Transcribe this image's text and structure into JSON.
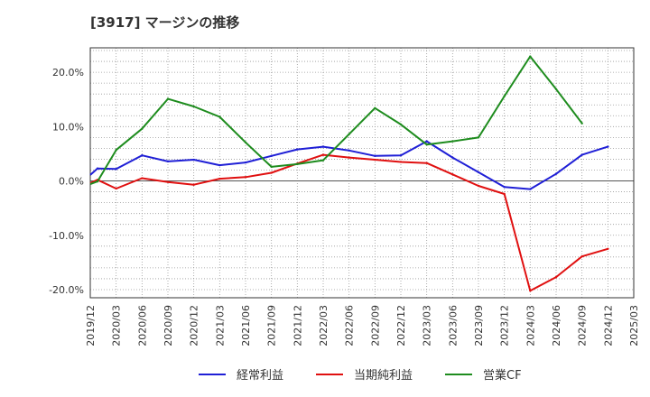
{
  "chart_data": {
    "type": "line",
    "title": "[3917]  マージンの推移",
    "xlabel": "",
    "ylabel": "",
    "ylim": [
      -21.5,
      24.5
    ],
    "yticks": [
      20,
      10,
      0,
      -10,
      -20
    ],
    "ytick_labels": [
      "20.0%",
      "10.0%",
      "0.0%",
      "-10.0%",
      "-20.0%"
    ],
    "x_categories": [
      "2019/12",
      "2020/03",
      "2020/06",
      "2020/09",
      "2020/12",
      "2021/03",
      "2021/06",
      "2021/09",
      "2021/12",
      "2022/03",
      "2022/06",
      "2022/09",
      "2022/12",
      "2023/03",
      "2023/06",
      "2023/09",
      "2023/12",
      "2024/03",
      "2024/06",
      "2024/09",
      "2024/12",
      "2025/03"
    ],
    "grid": true,
    "legend_position": "bottom",
    "series": [
      {
        "name": "経常利益",
        "color": "#1f1fd6",
        "x": [
          "2019/12",
          "2020/03",
          "2020/06",
          "2020/09",
          "2020/12",
          "2021/03",
          "2021/06",
          "2021/09",
          "2021/12",
          "2022/03",
          "2022/06",
          "2022/09",
          "2022/12",
          "2023/03",
          "2023/06",
          "2023/09",
          "2023/12",
          "2024/03",
          "2024/06",
          "2024/09",
          "2024/12"
        ],
        "values": [
          2.3,
          2.2,
          4.7,
          3.6,
          3.9,
          2.9,
          3.4,
          4.6,
          5.8,
          6.3,
          5.6,
          4.6,
          4.7,
          7.3,
          4.3,
          1.6,
          -1.1,
          -1.5,
          1.3,
          4.8,
          6.3
        ],
        "start_value": 1.1
      },
      {
        "name": "当期純利益",
        "color": "#e01010",
        "x": [
          "2019/12",
          "2020/03",
          "2020/06",
          "2020/09",
          "2020/12",
          "2021/03",
          "2021/06",
          "2021/09",
          "2021/12",
          "2022/03",
          "2022/06",
          "2022/09",
          "2022/12",
          "2023/03",
          "2023/06",
          "2023/09",
          "2023/12",
          "2024/03",
          "2024/06",
          "2024/09",
          "2024/12"
        ],
        "values": [
          0.2,
          -1.4,
          0.5,
          -0.2,
          -0.7,
          0.4,
          0.7,
          1.5,
          3.2,
          4.8,
          4.3,
          3.9,
          3.5,
          3.3,
          1.2,
          -0.9,
          -2.4,
          -20.2,
          -17.7,
          -13.9,
          -12.5
        ],
        "start_value": -0.4
      },
      {
        "name": "営業CF",
        "color": "#1e8c1e",
        "x": [
          "2019/12",
          "2020/03",
          "2020/06",
          "2020/09",
          "2020/12",
          "2021/03",
          "2021/06",
          "2021/09",
          "2021/12",
          "2022/03",
          "2022/06",
          "2022/09",
          "2022/12",
          "2023/03",
          "2023/06",
          "2023/09",
          "2023/12",
          "2024/03",
          "2024/06",
          "2024/09"
        ],
        "values": [
          -0.1,
          5.7,
          9.6,
          15.1,
          13.7,
          11.8,
          7.1,
          2.6,
          3.1,
          3.8,
          8.6,
          13.4,
          10.4,
          6.7,
          7.3,
          8.0,
          15.6,
          22.9,
          16.9,
          10.6
        ],
        "start_value": -0.6
      }
    ]
  }
}
